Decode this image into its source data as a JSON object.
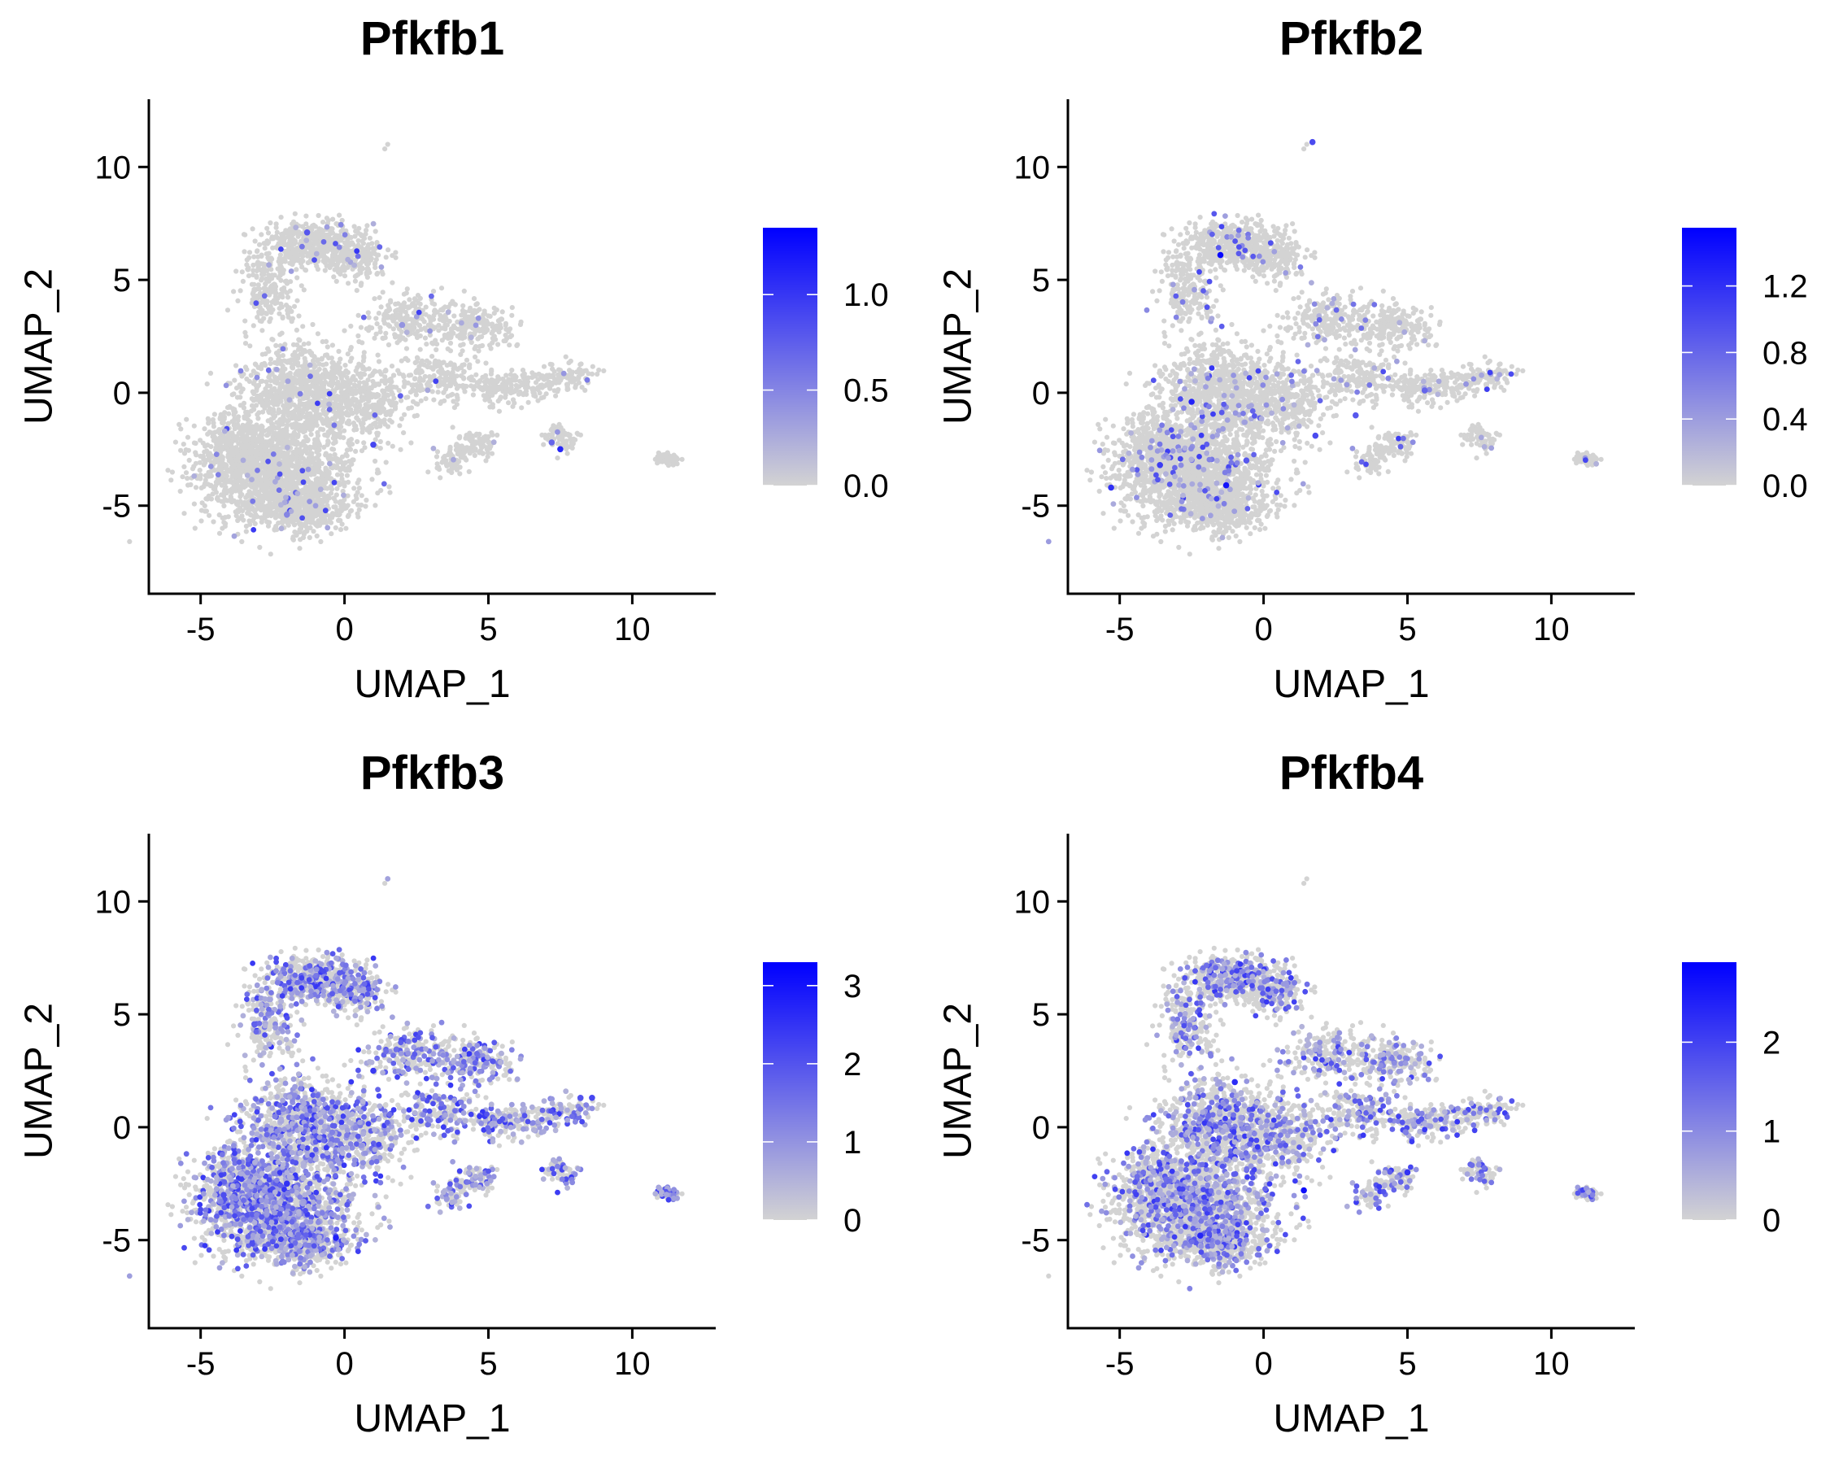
{
  "colors": {
    "low": "#d3d3d3",
    "high": "#0000ff",
    "axis": "#000000",
    "background": "#ffffff"
  },
  "chart_data": [
    {
      "type": "scatter",
      "title": "Pfkfb1",
      "xlabel": "UMAP_1",
      "ylabel": "UMAP_2",
      "xlim": [
        -6.8,
        12.9
      ],
      "ylim": [
        -8.9,
        13.0
      ],
      "xticks": [
        -5,
        0,
        5,
        10
      ],
      "yticks": [
        -5,
        0,
        5,
        10
      ],
      "xtick_labels": [
        "-5",
        "0",
        "5",
        "10"
      ],
      "ytick_labels": [
        "-5",
        "0",
        "5",
        "10"
      ],
      "color_scale": {
        "min": 0.0,
        "max": 1.35,
        "ticks": [
          0.0,
          0.5,
          1.0
        ],
        "tick_labels": [
          "0.0",
          "0.5",
          "1.0"
        ]
      },
      "expression_density": 0.02,
      "points": [
        [
          -1.3,
          7.1,
          0.8
        ],
        [
          1.0,
          -2.3,
          0.9
        ],
        [
          7.5,
          -2.5,
          1.1
        ],
        [
          7.2,
          -2.2,
          0.7
        ],
        [
          -2.0,
          -5.4,
          0.5
        ],
        [
          2.0,
          3.0,
          0.4
        ]
      ]
    },
    {
      "type": "scatter",
      "title": "Pfkfb2",
      "xlabel": "UMAP_1",
      "ylabel": "UMAP_2",
      "xlim": [
        -6.8,
        12.9
      ],
      "ylim": [
        -8.9,
        13.0
      ],
      "xticks": [
        -5,
        0,
        5,
        10
      ],
      "yticks": [
        -5,
        0,
        5,
        10
      ],
      "xtick_labels": [
        "-5",
        "0",
        "5",
        "10"
      ],
      "ytick_labels": [
        "-5",
        "0",
        "5",
        "10"
      ],
      "color_scale": {
        "min": 0.0,
        "max": 1.55,
        "ticks": [
          0.0,
          0.4,
          0.8,
          1.2
        ],
        "tick_labels": [
          "0.0",
          "0.4",
          "0.8",
          "1.2"
        ]
      },
      "expression_density": 0.05,
      "points": [
        [
          -1.5,
          6.1,
          1.5
        ],
        [
          -2.5,
          -0.4,
          1.3
        ],
        [
          -1.3,
          -4.1,
          1.4
        ],
        [
          -5.3,
          -4.2,
          1.2
        ],
        [
          1.7,
          11.1,
          1.0
        ],
        [
          -3.6,
          -3.2,
          1.1
        ],
        [
          3.2,
          -1.0,
          0.9
        ],
        [
          5.6,
          0.1,
          0.8
        ],
        [
          1.8,
          -1.9,
          1.0
        ],
        [
          -0.6,
          -3.0,
          0.9
        ]
      ]
    },
    {
      "type": "scatter",
      "title": "Pfkfb3",
      "xlabel": "UMAP_1",
      "ylabel": "UMAP_2",
      "xlim": [
        -6.8,
        12.9
      ],
      "ylim": [
        -8.9,
        13.0
      ],
      "xticks": [
        -5,
        0,
        5,
        10
      ],
      "yticks": [
        -5,
        0,
        5,
        10
      ],
      "xtick_labels": [
        "-5",
        "0",
        "5",
        "10"
      ],
      "ytick_labels": [
        "-5",
        "0",
        "5",
        "10"
      ],
      "color_scale": {
        "min": 0.0,
        "max": 3.3,
        "ticks": [
          0,
          1,
          2,
          3
        ],
        "tick_labels": [
          "0",
          "1",
          "2",
          "3"
        ]
      },
      "expression_density": 0.4,
      "points": [
        [
          8.6,
          1.3,
          2.2
        ],
        [
          8.2,
          1.3,
          2.0
        ],
        [
          -0.3,
          -4.9,
          2.8
        ],
        [
          -2.0,
          -2.5,
          2.5
        ],
        [
          1.0,
          2.5,
          2.4
        ],
        [
          -4.2,
          -3.0,
          2.1
        ]
      ]
    },
    {
      "type": "scatter",
      "title": "Pfkfb4",
      "xlabel": "UMAP_1",
      "ylabel": "UMAP_2",
      "xlim": [
        -6.8,
        12.9
      ],
      "ylim": [
        -8.9,
        13.0
      ],
      "xticks": [
        -5,
        0,
        5,
        10
      ],
      "yticks": [
        -5,
        0,
        5,
        10
      ],
      "xtick_labels": [
        "-5",
        "0",
        "5",
        "10"
      ],
      "ytick_labels": [
        "-5",
        "0",
        "5",
        "10"
      ],
      "color_scale": {
        "min": 0.0,
        "max": 2.9,
        "ticks": [
          0,
          1,
          2
        ],
        "tick_labels": [
          "0",
          "1",
          "2"
        ]
      },
      "expression_density": 0.3,
      "points": [
        [
          1.4,
          -2.8,
          2.7
        ],
        [
          -1.0,
          2.0,
          2.3
        ],
        [
          5.0,
          -2.0,
          2.2
        ],
        [
          -2.2,
          -4.8,
          2.4
        ]
      ]
    }
  ]
}
